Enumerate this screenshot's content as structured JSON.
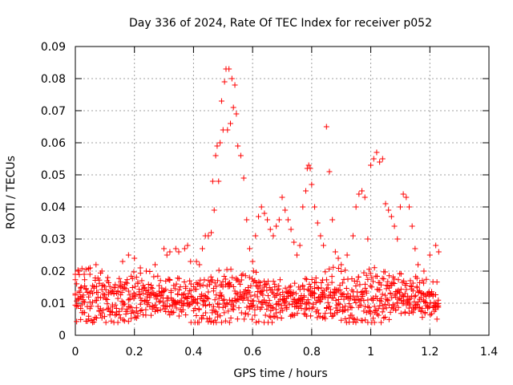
{
  "chart_data": {
    "type": "scatter",
    "title": "Day 336 of 2024, Rate Of TEC Index for receiver p052",
    "xlabel": "GPS time / hours",
    "ylabel": "ROTI / TECUs",
    "xlim": [
      0,
      1.4
    ],
    "ylim": [
      0,
      0.09
    ],
    "x_ticks": [
      0,
      0.2,
      0.4,
      0.6,
      0.8,
      1,
      1.2,
      1.4
    ],
    "x_tick_labels": [
      "0",
      "0.2",
      "0.4",
      "0.6",
      "0.8",
      "1",
      "1.2",
      "1.4"
    ],
    "y_ticks": [
      0,
      0.01,
      0.02,
      0.03,
      0.04,
      0.05,
      0.06,
      0.07,
      0.08,
      0.09
    ],
    "y_tick_labels": [
      "0",
      "0.01",
      "0.02",
      "0.03",
      "0.04",
      "0.05",
      "0.06",
      "0.07",
      "0.08",
      "0.09"
    ],
    "grid": true,
    "marker": "+",
    "series_color": "#ff0000",
    "background": "all satellites noisy band ROTI between 0.005 and 0.02 TECU/min from t=0 to t=1.23 h",
    "series": [
      {
        "name": "ROTI",
        "points": [
          [
            0.0,
            0.019
          ],
          [
            0.01,
            0.02
          ],
          [
            0.02,
            0.015
          ],
          [
            0.03,
            0.019
          ],
          [
            0.05,
            0.021
          ],
          [
            0.07,
            0.022
          ],
          [
            0.09,
            0.02
          ],
          [
            0.11,
            0.018
          ],
          [
            0.16,
            0.023
          ],
          [
            0.18,
            0.025
          ],
          [
            0.2,
            0.024
          ],
          [
            0.22,
            0.021
          ],
          [
            0.24,
            0.02
          ],
          [
            0.27,
            0.022
          ],
          [
            0.3,
            0.027
          ],
          [
            0.31,
            0.025
          ],
          [
            0.32,
            0.026
          ],
          [
            0.34,
            0.027
          ],
          [
            0.35,
            0.026
          ],
          [
            0.37,
            0.027
          ],
          [
            0.38,
            0.028
          ],
          [
            0.39,
            0.023
          ],
          [
            0.41,
            0.023
          ],
          [
            0.42,
            0.022
          ],
          [
            0.43,
            0.027
          ],
          [
            0.44,
            0.031
          ],
          [
            0.45,
            0.031
          ],
          [
            0.46,
            0.032
          ],
          [
            0.465,
            0.048
          ],
          [
            0.47,
            0.039
          ],
          [
            0.475,
            0.056
          ],
          [
            0.48,
            0.059
          ],
          [
            0.485,
            0.048
          ],
          [
            0.49,
            0.06
          ],
          [
            0.495,
            0.073
          ],
          [
            0.5,
            0.064
          ],
          [
            0.505,
            0.079
          ],
          [
            0.51,
            0.083
          ],
          [
            0.515,
            0.064
          ],
          [
            0.52,
            0.083
          ],
          [
            0.525,
            0.066
          ],
          [
            0.53,
            0.08
          ],
          [
            0.535,
            0.071
          ],
          [
            0.54,
            0.078
          ],
          [
            0.545,
            0.069
          ],
          [
            0.55,
            0.059
          ],
          [
            0.56,
            0.056
          ],
          [
            0.57,
            0.049
          ],
          [
            0.58,
            0.036
          ],
          [
            0.59,
            0.027
          ],
          [
            0.6,
            0.023
          ],
          [
            0.61,
            0.031
          ],
          [
            0.62,
            0.037
          ],
          [
            0.63,
            0.04
          ],
          [
            0.64,
            0.038
          ],
          [
            0.65,
            0.036
          ],
          [
            0.66,
            0.033
          ],
          [
            0.67,
            0.031
          ],
          [
            0.68,
            0.034
          ],
          [
            0.69,
            0.036
          ],
          [
            0.7,
            0.043
          ],
          [
            0.71,
            0.039
          ],
          [
            0.72,
            0.036
          ],
          [
            0.73,
            0.033
          ],
          [
            0.74,
            0.029
          ],
          [
            0.75,
            0.025
          ],
          [
            0.76,
            0.028
          ],
          [
            0.77,
            0.04
          ],
          [
            0.78,
            0.045
          ],
          [
            0.785,
            0.052
          ],
          [
            0.79,
            0.053
          ],
          [
            0.795,
            0.052
          ],
          [
            0.8,
            0.047
          ],
          [
            0.81,
            0.04
          ],
          [
            0.82,
            0.035
          ],
          [
            0.83,
            0.031
          ],
          [
            0.84,
            0.028
          ],
          [
            0.85,
            0.065
          ],
          [
            0.86,
            0.051
          ],
          [
            0.87,
            0.036
          ],
          [
            0.88,
            0.026
          ],
          [
            0.89,
            0.024
          ],
          [
            0.9,
            0.022
          ],
          [
            0.92,
            0.025
          ],
          [
            0.94,
            0.031
          ],
          [
            0.95,
            0.04
          ],
          [
            0.96,
            0.044
          ],
          [
            0.97,
            0.045
          ],
          [
            0.98,
            0.043
          ],
          [
            0.99,
            0.03
          ],
          [
            1.0,
            0.053
          ],
          [
            1.01,
            0.055
          ],
          [
            1.02,
            0.057
          ],
          [
            1.03,
            0.054
          ],
          [
            1.04,
            0.055
          ],
          [
            1.05,
            0.041
          ],
          [
            1.06,
            0.039
          ],
          [
            1.07,
            0.037
          ],
          [
            1.08,
            0.034
          ],
          [
            1.09,
            0.03
          ],
          [
            1.1,
            0.04
          ],
          [
            1.11,
            0.044
          ],
          [
            1.12,
            0.043
          ],
          [
            1.13,
            0.04
          ],
          [
            1.14,
            0.034
          ],
          [
            1.15,
            0.027
          ],
          [
            1.16,
            0.022
          ],
          [
            1.18,
            0.02
          ],
          [
            1.2,
            0.025
          ],
          [
            1.22,
            0.028
          ],
          [
            1.23,
            0.026
          ]
        ]
      }
    ]
  }
}
